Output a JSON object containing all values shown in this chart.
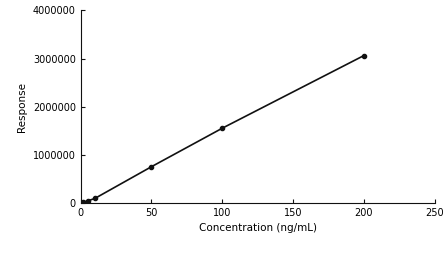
{
  "x_data": [
    0,
    1,
    2,
    5,
    10,
    50,
    100,
    200
  ],
  "y_data": [
    0,
    5000,
    15000,
    40000,
    90000,
    750000,
    1550000,
    3060000
  ],
  "xlabel": "Concentration (ng/mL)",
  "ylabel": "Response",
  "xlim": [
    0,
    250
  ],
  "ylim": [
    0,
    4000000
  ],
  "xticks": [
    0,
    50,
    100,
    150,
    200,
    250
  ],
  "yticks": [
    0,
    1000000,
    2000000,
    3000000,
    4000000
  ],
  "ytick_labels": [
    "0",
    "1000000",
    "2000000",
    "3000000",
    "4000000"
  ],
  "line_color": "#111111",
  "marker_color": "#111111",
  "marker": "o",
  "marker_size": 3,
  "line_width": 1.2,
  "background_color": "#ffffff",
  "font_size_label": 7.5,
  "font_size_tick": 7
}
